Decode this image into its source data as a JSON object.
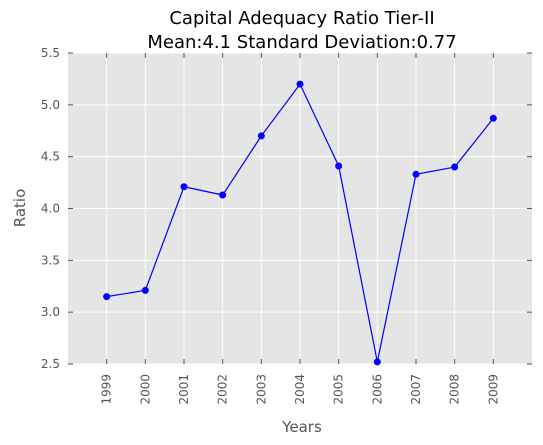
{
  "chart_data": {
    "type": "line",
    "title": "Capital Adequacy Ratio Tier-II",
    "subtitle": "Mean:4.1 Standard Deviation:0.77",
    "xlabel": "Years",
    "ylabel": "Ratio",
    "categories": [
      "1999",
      "2000",
      "2001",
      "2002",
      "2003",
      "2004",
      "2005",
      "2006",
      "2007",
      "2008",
      "2009"
    ],
    "x_range": [
      1998,
      2010
    ],
    "series": [
      {
        "values": [
          3.15,
          3.21,
          4.21,
          4.13,
          4.7,
          5.2,
          4.41,
          2.52,
          4.33,
          4.4,
          4.87
        ]
      }
    ],
    "ylim": [
      2.5,
      5.5
    ],
    "yticks": [
      "2.5",
      "3.0",
      "3.5",
      "4.0",
      "4.5",
      "5.0",
      "5.5"
    ],
    "grid": true,
    "colors": {
      "line": "#0000ff",
      "marker": "#0000ff",
      "background": "#e5e5e5"
    }
  }
}
